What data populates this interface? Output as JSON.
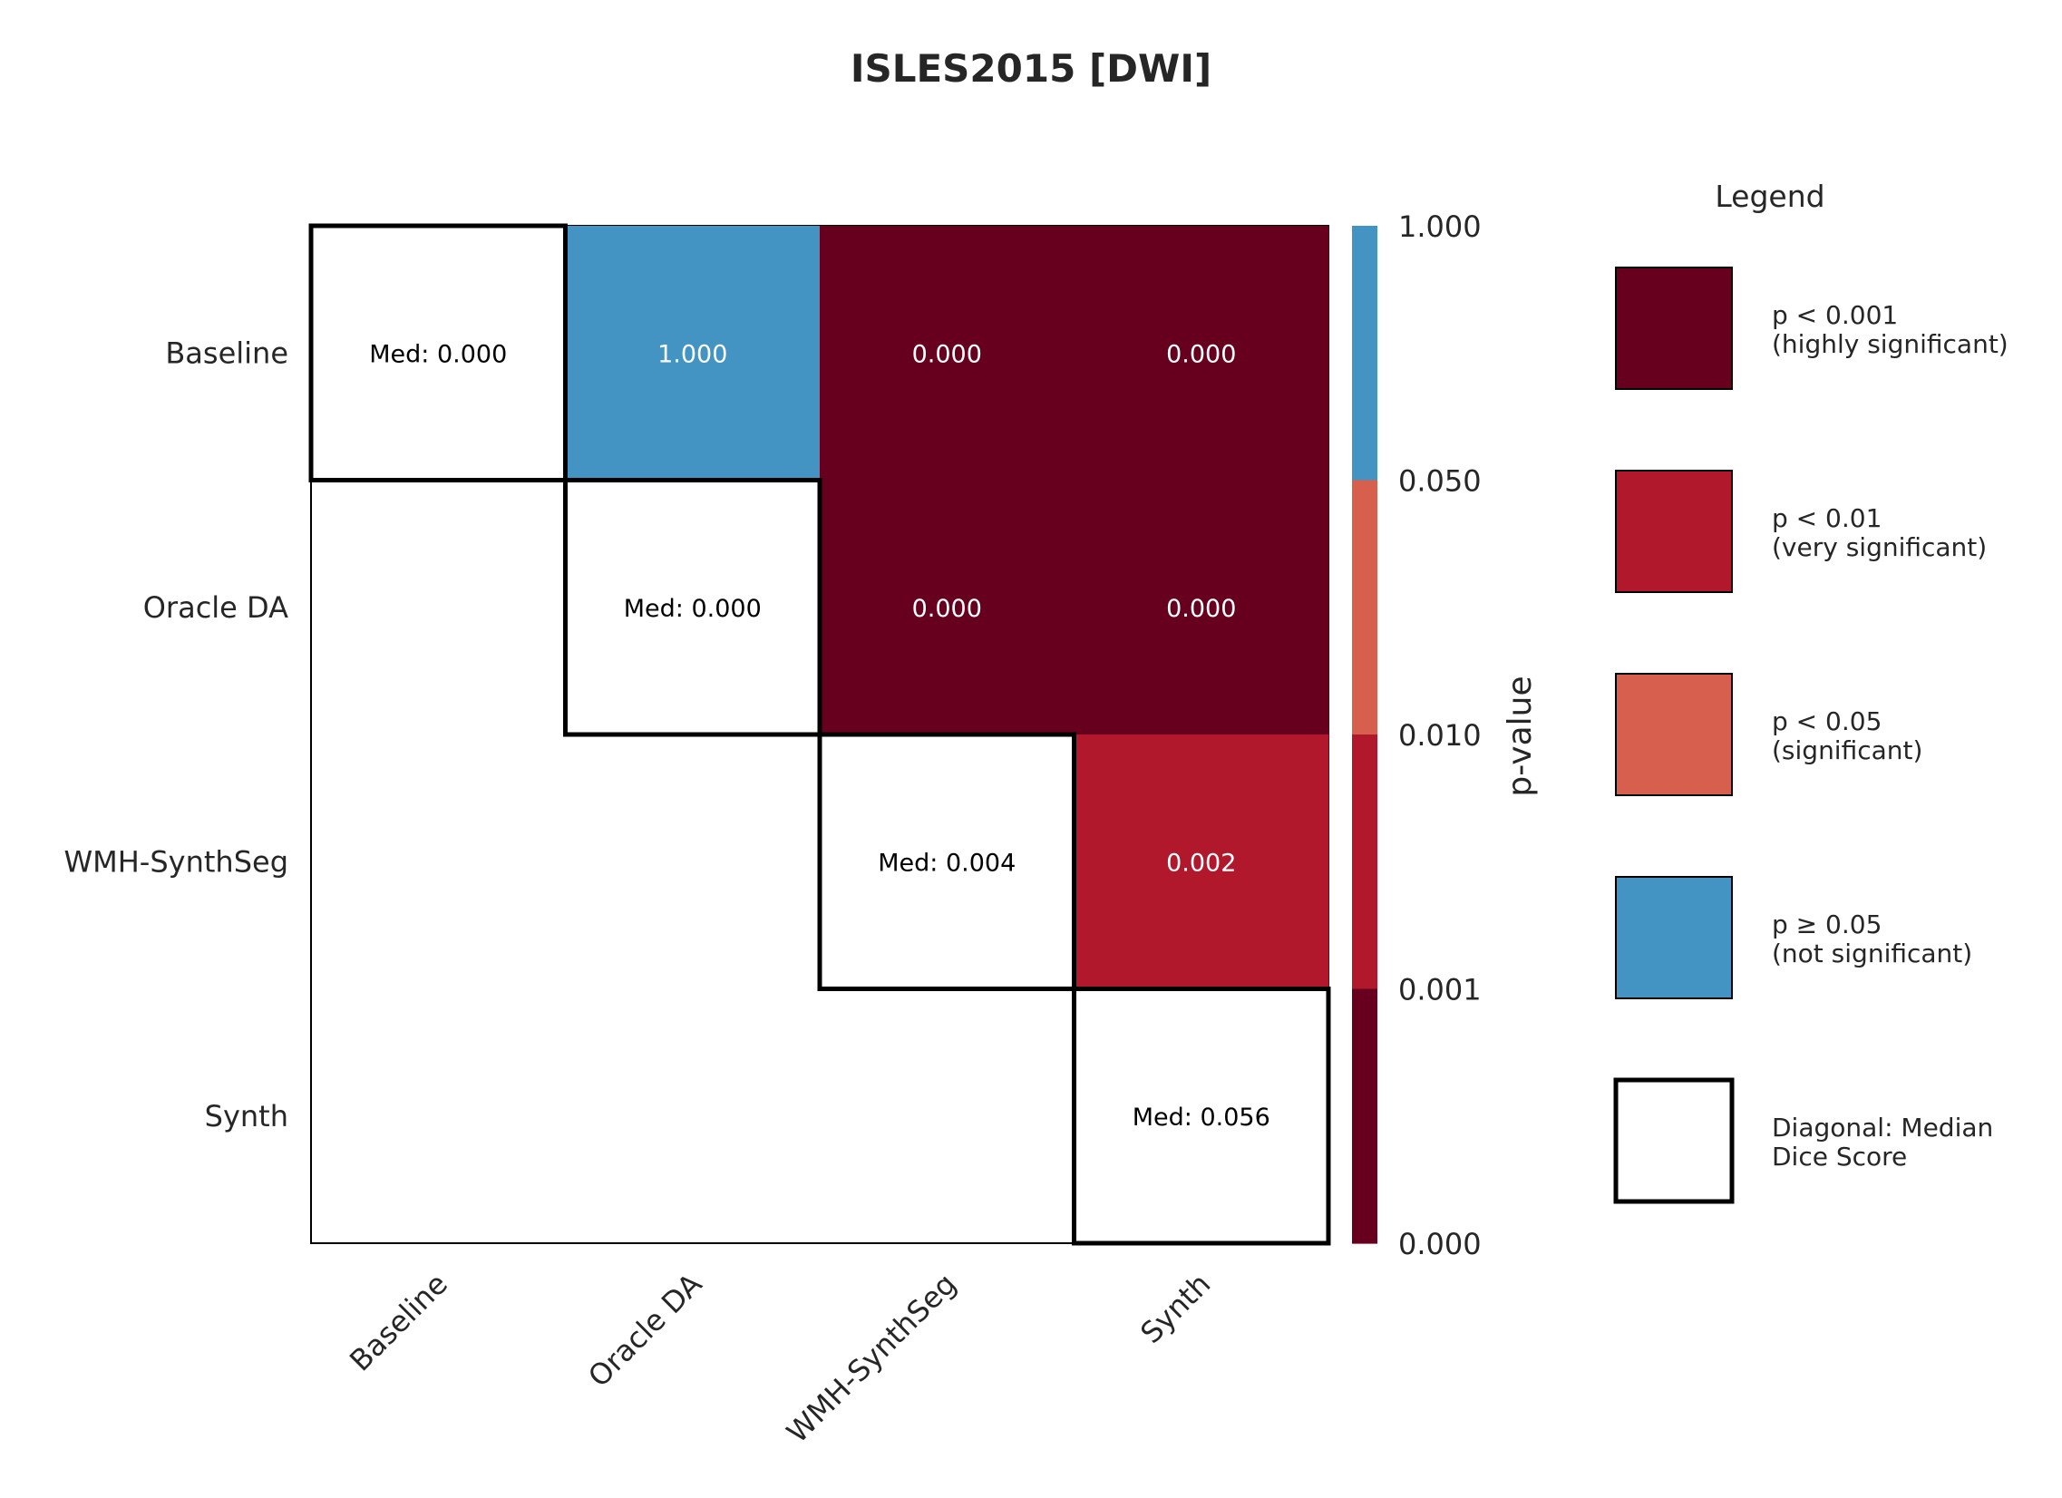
{
  "chart_data": {
    "type": "heatmap",
    "title": "ISLES2015 [DWI]",
    "rows": [
      "Baseline",
      "Oracle DA",
      "WMH-SynthSeg",
      "Synth"
    ],
    "columns": [
      "Baseline",
      "Oracle DA",
      "WMH-SynthSeg",
      "Synth"
    ],
    "diagonal_prefix": "Med: ",
    "diagonal_median_dice": [
      0.0,
      0.0,
      0.004,
      0.056
    ],
    "p_values": [
      [
        null,
        1.0,
        0.0,
        0.0
      ],
      [
        null,
        null,
        0.0,
        0.0
      ],
      [
        null,
        null,
        null,
        0.002
      ],
      [
        null,
        null,
        null,
        null
      ]
    ],
    "colorbar": {
      "label": "p-value",
      "ticks": [
        "1.000",
        "0.050",
        "0.010",
        "0.001",
        "0.000"
      ],
      "bands": [
        {
          "from": 0.05,
          "to": 1.0,
          "color": "#4393c3"
        },
        {
          "from": 0.01,
          "to": 0.05,
          "color": "#d6604d"
        },
        {
          "from": 0.001,
          "to": 0.01,
          "color": "#b2182b"
        },
        {
          "from": 0.0,
          "to": 0.001,
          "color": "#67001f"
        }
      ]
    },
    "legend": {
      "title": "Legend",
      "items": [
        {
          "line1": "p < 0.001",
          "line2": "(highly significant)",
          "color": "#67001f"
        },
        {
          "line1": "p < 0.01",
          "line2": "(very significant)",
          "color": "#b2182b"
        },
        {
          "line1": "p < 0.05",
          "line2": "(significant)",
          "color": "#d6604d"
        },
        {
          "line1": "p ≥ 0.05",
          "line2": "(not significant)",
          "color": "#4393c3"
        },
        {
          "line1": "Diagonal: Median",
          "line2": "Dice Score",
          "color": "#ffffff",
          "diagonal": true
        }
      ]
    }
  }
}
